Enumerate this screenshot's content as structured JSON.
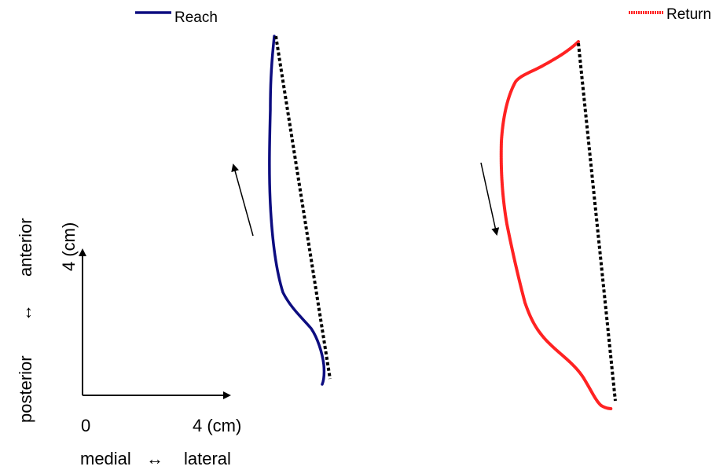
{
  "legend": {
    "reach_label": "Reach",
    "return_label": "Return"
  },
  "scale_bar": {
    "origin_label": "0",
    "x_length_label": "4 (cm)",
    "y_length_label": "4 (cm)",
    "x_axis": {
      "left_label": "medial",
      "arrow_glyph": "↔",
      "right_label": "lateral"
    },
    "y_axis": {
      "bottom_label": "posterior",
      "arrow_glyph": "↔",
      "top_label": "anterior"
    }
  },
  "colors": {
    "reach": "#0d0d80",
    "return": "#ff2222",
    "straight_line": "#000000",
    "arrow": "#000000",
    "background": "#ffffff"
  },
  "icons": {
    "reach_direction": "arrow-up-icon",
    "return_direction": "arrow-down-icon"
  }
}
